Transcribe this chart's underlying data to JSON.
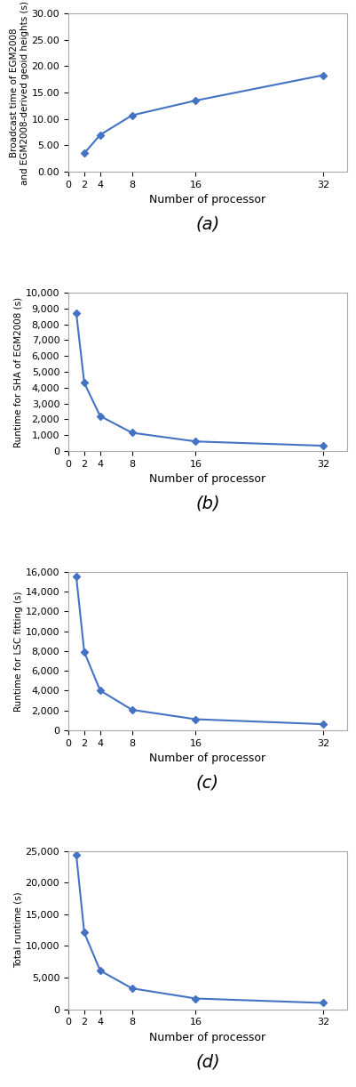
{
  "subplot_a": {
    "x": [
      2,
      4,
      8,
      16,
      32
    ],
    "y": [
      3.5,
      7.0,
      10.7,
      13.5,
      18.3
    ],
    "xlabel": "Number of processor",
    "ylabel": "Broadcast time of EGM2008\nand EGM2008-derived geoid heights (s)",
    "ylim": [
      0,
      30
    ],
    "yticks": [
      0.0,
      5.0,
      10.0,
      15.0,
      20.0,
      25.0,
      30.0
    ],
    "xticks": [
      0,
      2,
      4,
      8,
      16,
      32
    ],
    "xlim": [
      0,
      35
    ],
    "label": "(a)",
    "fmt_decimal": true
  },
  "subplot_b": {
    "x": [
      1,
      2,
      4,
      8,
      16,
      32
    ],
    "y": [
      8700,
      4300,
      2200,
      1150,
      600,
      330
    ],
    "xlabel": "Number of processor",
    "ylabel": "Runtime for SHA of EGM2008 (s)",
    "ylim": [
      0,
      10000
    ],
    "yticks": [
      0,
      1000,
      2000,
      3000,
      4000,
      5000,
      6000,
      7000,
      8000,
      9000,
      10000
    ],
    "xticks": [
      0,
      2,
      4,
      8,
      16,
      32
    ],
    "xlim": [
      0,
      35
    ],
    "label": "(b)",
    "fmt_decimal": false
  },
  "subplot_c": {
    "x": [
      1,
      2,
      4,
      8,
      16,
      32
    ],
    "y": [
      15500,
      7900,
      4000,
      2050,
      1100,
      600
    ],
    "xlabel": "Number of processor",
    "ylabel": "Runtime for LSC fitting (s)",
    "ylim": [
      0,
      16000
    ],
    "yticks": [
      0,
      2000,
      4000,
      6000,
      8000,
      10000,
      12000,
      14000,
      16000
    ],
    "xticks": [
      0,
      2,
      4,
      8,
      16,
      32
    ],
    "xlim": [
      0,
      35
    ],
    "label": "(c)",
    "fmt_decimal": false
  },
  "subplot_d": {
    "x": [
      1,
      2,
      4,
      8,
      16,
      32
    ],
    "y": [
      24400,
      12100,
      6100,
      3300,
      1700,
      1000
    ],
    "xlabel": "Number of processor",
    "ylabel": "Total runtime (s)",
    "ylim": [
      0,
      25000
    ],
    "yticks": [
      0,
      5000,
      10000,
      15000,
      20000,
      25000
    ],
    "xticks": [
      0,
      2,
      4,
      8,
      16,
      32
    ],
    "xlim": [
      0,
      35
    ],
    "label": "(d)",
    "fmt_decimal": false
  },
  "line_color": "#4472C4",
  "marker": "D",
  "markersize": 4,
  "linewidth": 1.5,
  "xlabel_fontsize": 9,
  "ylabel_fontsize": 7.5,
  "tick_fontsize": 8,
  "subplot_label_fontsize": 14,
  "figure_bg": "#ffffff",
  "axes_bg": "#ffffff",
  "spine_color": "#aaaaaa"
}
